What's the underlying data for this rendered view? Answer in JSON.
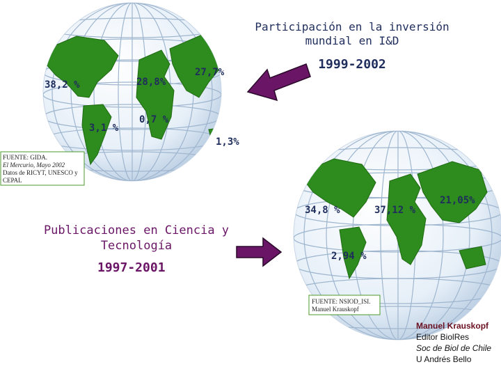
{
  "top": {
    "title": [
      "Participación en la inversión",
      "mundial en I&D"
    ],
    "period": "1999-2002",
    "labels": [
      "38,2 %",
      "28,8%",
      "27,7%",
      "3,1 %",
      "0,7 %",
      "1,3%"
    ],
    "source": [
      "FUENTE: GIDA.",
      "El Mercurio, Mayo 2002",
      "Datos de RICYT, UNESCO y",
      "CEPAL"
    ]
  },
  "bottom": {
    "title": [
      "Publicaciones en Ciencia y",
      "Tecnología"
    ],
    "period": "1997-2001",
    "labels": [
      "34,8 %",
      "37,12 %",
      "21,05%",
      "2,94 %"
    ],
    "source": [
      "FUENTE: NSIOD_ISI.",
      "Manuel Krauskopf"
    ]
  },
  "credits": [
    "Manuel Krauskopf",
    "Editor BiolRes",
    "Soc de Biol de Chile",
    "U Andrés Bello"
  ]
}
